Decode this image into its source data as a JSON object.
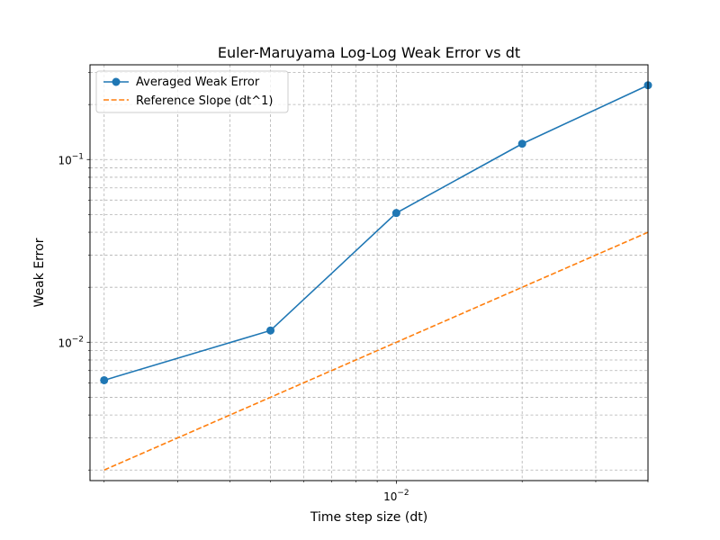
{
  "chart_data": {
    "type": "line",
    "title": "Euler-Maruyama Log-Log Weak Error vs dt",
    "xlabel": "Time step size (dt)",
    "ylabel": "Weak Error",
    "xscale": "log",
    "yscale": "log",
    "xlim": [
      0.00185,
      0.04
    ],
    "ylim": [
      0.00175,
      0.33
    ],
    "x_tick_labels": [
      {
        "value": 0.01,
        "base": "10",
        "exp": "−2"
      }
    ],
    "y_tick_labels": [
      {
        "value": 0.01,
        "base": "10",
        "exp": "−2"
      },
      {
        "value": 0.1,
        "base": "10",
        "exp": "−1"
      }
    ],
    "grid": true,
    "legend_position": "upper left",
    "series": [
      {
        "name": "Averaged Weak Error",
        "color": "#1f77b4",
        "style": "solid",
        "marker": "circle",
        "x": [
          0.002,
          0.005,
          0.01,
          0.02,
          0.04
        ],
        "y": [
          0.0062,
          0.0116,
          0.051,
          0.122,
          0.255
        ]
      },
      {
        "name": "Reference Slope (dt^1)",
        "color": "#ff7f0e",
        "style": "dashed",
        "marker": "none",
        "x": [
          0.002,
          0.005,
          0.01,
          0.02,
          0.04
        ],
        "y": [
          0.002,
          0.005,
          0.01,
          0.02,
          0.04
        ]
      }
    ]
  }
}
